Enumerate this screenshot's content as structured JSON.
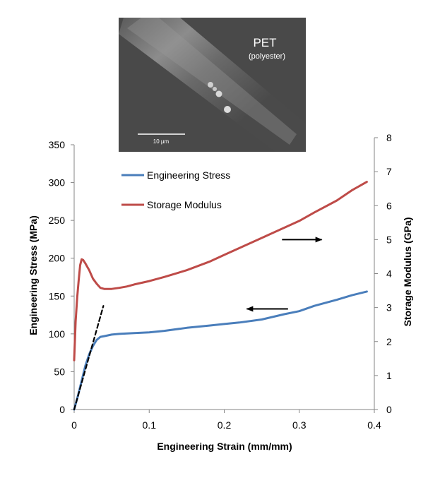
{
  "chart_data": {
    "type": "line",
    "xlabel": "Engineering Strain (mm/mm)",
    "ylabel": "Engineering Stress (MPa)",
    "y2label": "Storage Modulus (GPa)",
    "xlim": [
      0,
      0.4
    ],
    "ylim": [
      0,
      350
    ],
    "y2lim": [
      0,
      8
    ],
    "x_ticks": [
      0,
      0.1,
      0.2,
      0.3,
      0.4
    ],
    "x_tick_labels": [
      "0",
      "0.1",
      "0.2",
      "0.3",
      "0.4"
    ],
    "y_ticks": [
      0,
      50,
      100,
      150,
      200,
      250,
      300,
      350
    ],
    "y_tick_labels": [
      "0",
      "50",
      "100",
      "150",
      "200",
      "250",
      "300",
      "350"
    ],
    "y2_ticks": [
      0,
      1,
      2,
      3,
      4,
      5,
      6,
      7,
      8
    ],
    "y2_tick_labels": [
      "0",
      "1",
      "2",
      "3",
      "4",
      "5",
      "6",
      "7",
      "8"
    ],
    "grid": false,
    "legend_position": "top-left",
    "series": [
      {
        "name": "Engineering Stress",
        "axis": "left",
        "color": "#4a7ebb",
        "x": [
          0,
          0.005,
          0.01,
          0.015,
          0.02,
          0.025,
          0.03,
          0.035,
          0.04,
          0.05,
          0.06,
          0.08,
          0.1,
          0.12,
          0.15,
          0.18,
          0.2,
          0.22,
          0.25,
          0.28,
          0.3,
          0.32,
          0.35,
          0.37,
          0.39
        ],
        "y": [
          0,
          18,
          38,
          58,
          73,
          84,
          92,
          96,
          97,
          99,
          100,
          101,
          102,
          104,
          108,
          111,
          113,
          115,
          119,
          126,
          130,
          137,
          145,
          151,
          156
        ]
      },
      {
        "name": "Storage Modulus",
        "axis": "right",
        "color": "#be4b48",
        "x": [
          0,
          0.002,
          0.004,
          0.006,
          0.008,
          0.01,
          0.012,
          0.015,
          0.02,
          0.025,
          0.03,
          0.035,
          0.04,
          0.05,
          0.06,
          0.07,
          0.08,
          0.1,
          0.12,
          0.15,
          0.18,
          0.2,
          0.22,
          0.25,
          0.28,
          0.3,
          0.32,
          0.35,
          0.37,
          0.39
        ],
        "y": [
          1.45,
          2.6,
          3.3,
          3.8,
          4.25,
          4.42,
          4.4,
          4.3,
          4.1,
          3.85,
          3.7,
          3.58,
          3.55,
          3.55,
          3.58,
          3.62,
          3.68,
          3.78,
          3.9,
          4.1,
          4.35,
          4.55,
          4.75,
          5.05,
          5.35,
          5.55,
          5.8,
          6.15,
          6.45,
          6.7
        ]
      },
      {
        "name": "",
        "axis": "left",
        "style": "dashed",
        "color": "#000000",
        "x": [
          0,
          0.039
        ],
        "y": [
          0,
          137
        ]
      }
    ],
    "annotations": [
      {
        "type": "arrow",
        "direction": "right",
        "x_from": 0.277,
        "x_to": 0.33,
        "y2": 5.0
      },
      {
        "type": "arrow",
        "direction": "left",
        "x_from": 0.285,
        "x_to": 0.23,
        "y": 133
      }
    ]
  },
  "inset": {
    "title": "PET",
    "subtitle": "(polyester)",
    "scalebar_label": "10 µm"
  }
}
